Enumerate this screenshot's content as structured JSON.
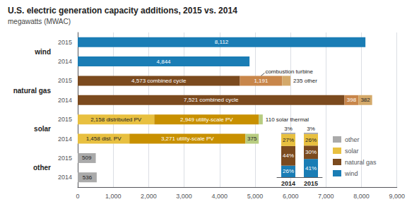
{
  "chart_data": [
    {
      "type": "bar",
      "orientation": "horizontal",
      "stacked": true,
      "title": "U.S. electric generation capacity additions, 2015 vs. 2014",
      "subtitle": "megawatts (MWAC)",
      "categories": [
        "2015",
        "2014",
        "2015",
        "2014",
        "2015",
        "2014",
        "2015",
        "2014"
      ],
      "groups": [
        "wind",
        "natural gas",
        "solar",
        "other"
      ],
      "series": [
        {
          "values": [
            8112,
            4844,
            4573,
            7521,
            2158,
            1458,
            509,
            536
          ],
          "colors": [
            "#1a7db5",
            "#1a7db5",
            "#7b4a1e",
            "#7b4a1e",
            "#e8c040",
            "#e8c040",
            "#aaaaaa",
            "#aaaaaa"
          ],
          "value_labels": [
            "8,112",
            "4,844",
            "4,573 combined cycle",
            "7,521 combined cycle",
            "2,158 distributed PV",
            "1,458 dist. PV",
            "509",
            "536"
          ]
        },
        {
          "values": [
            null,
            null,
            1191,
            398,
            2949,
            3271,
            null,
            null
          ],
          "colors": [
            null,
            null,
            "#c8864a",
            "#c8864a",
            "#c89000",
            "#c89000",
            null,
            null
          ],
          "value_labels": [
            null,
            null,
            "1,191",
            "398",
            "2,949 utility-scale PV",
            "3,271 utility-scale PV",
            null,
            null
          ]
        },
        {
          "values": [
            null,
            null,
            235,
            382,
            110,
            375,
            null,
            null
          ],
          "colors": [
            null,
            null,
            "#d4a96a",
            "#d4a96a",
            "#b8cc80",
            "#b8cc80",
            null,
            null
          ],
          "value_labels": [
            null,
            null,
            "235 other",
            "382",
            "110 solar thermal",
            "375",
            null,
            null
          ]
        }
      ],
      "annotations": [
        {
          "text": "combustion turbine",
          "category_index": 2,
          "series_index": 1
        }
      ],
      "data_labels": true,
      "xlim": [
        0,
        9000
      ],
      "xticks": [
        0,
        {
          "value": 1000,
          "label": "1,000"
        },
        {
          "value": 2000,
          "label": "2,000"
        },
        {
          "value": 3000,
          "label": "3,000"
        },
        {
          "value": 4000,
          "label": "4,000"
        },
        {
          "value": 5000,
          "label": "5,000"
        },
        {
          "value": 6000,
          "label": "6,000"
        },
        {
          "value": 7000,
          "label": "7,000"
        },
        {
          "value": 8000,
          "label": "8,000"
        },
        {
          "value": 9000,
          "label": "9,000"
        }
      ],
      "grid": true
    },
    {
      "type": "bar",
      "stacked": true,
      "categories": [
        "2014",
        "2015"
      ],
      "series": [
        {
          "name": "wind",
          "color": "#1a7db5",
          "values": [
            26,
            41
          ],
          "value_labels": [
            "26%",
            "41%"
          ]
        },
        {
          "name": "natural gas",
          "color": "#7b4a1e",
          "values": [
            44,
            30
          ],
          "value_labels": [
            "44%",
            "30%"
          ]
        },
        {
          "name": "solar",
          "color": "#e8c040",
          "values": [
            27,
            26
          ],
          "value_labels": [
            "27%",
            "26%"
          ]
        },
        {
          "name": "other",
          "color": "#aaaaaa",
          "values": [
            3,
            3
          ],
          "value_labels": [
            "3%",
            "3%"
          ]
        }
      ],
      "data_labels": true,
      "ylim": [
        0,
        100
      ],
      "tick_labels": "x",
      "legend": "right"
    }
  ]
}
